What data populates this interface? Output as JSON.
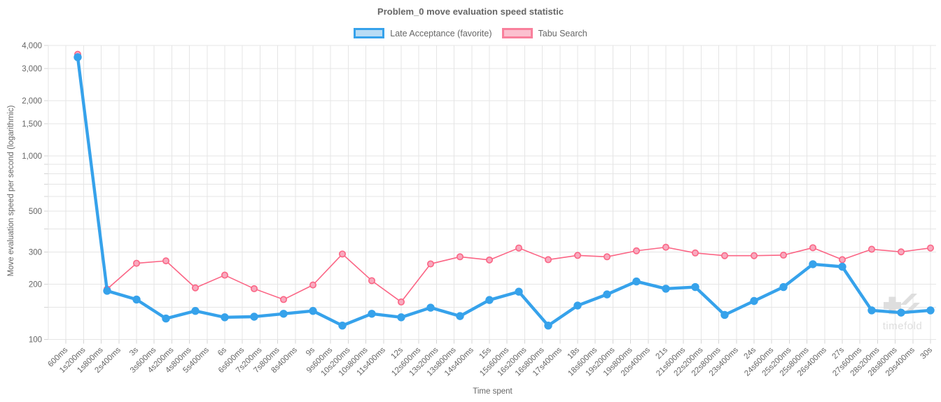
{
  "chart": {
    "title": "Problem_0 move evaluation speed statistic",
    "x_axis_title": "Time spent",
    "y_axis_title": "Move evaluation speed per second (logarithmic)",
    "watermark_text": "timefold"
  },
  "legend": {
    "items": [
      {
        "label": "Late Acceptance (favorite)",
        "line_color": "#36A2EB",
        "fill_color": "#B8DCF5"
      },
      {
        "label": "Tabu Search",
        "line_color": "#F9809C",
        "fill_color": "#FBC0CF"
      }
    ]
  },
  "colors": {
    "late_acceptance_line": "#36A2EB",
    "tabu_line": "#FB6585",
    "tabu_marker_fill": "#F8A9BE",
    "grid": "#e5e5e5",
    "tick_mark": "#d4d4d4",
    "tick_text": "#666666",
    "watermark": "#dedede"
  },
  "chart_data": {
    "type": "line",
    "title": "Problem_0 move evaluation speed statistic",
    "xlabel": "Time spent",
    "ylabel": "Move evaluation speed per second (logarithmic)",
    "x_axis": {
      "scale": "linear-time",
      "tick_interval": "600ms",
      "range_seconds": [
        0,
        30
      ],
      "tick_labels": [
        "600ms",
        "1s200ms",
        "1s800ms",
        "2s400ms",
        "3s",
        "3s600ms",
        "4s200ms",
        "4s800ms",
        "5s400ms",
        "6s",
        "6s600ms",
        "7s200ms",
        "7s800ms",
        "8s400ms",
        "9s",
        "9s600ms",
        "10s200ms",
        "10s800ms",
        "11s400ms",
        "12s",
        "12s600ms",
        "13s200ms",
        "13s800ms",
        "14s400ms",
        "15s",
        "15s600ms",
        "16s200ms",
        "16s800ms",
        "17s400ms",
        "18s",
        "18s600ms",
        "19s200ms",
        "19s800ms",
        "20s400ms",
        "21s",
        "21s600ms",
        "22s200ms",
        "22s800ms",
        "23s400ms",
        "24s",
        "24s600ms",
        "25s200ms",
        "25s800ms",
        "26s400ms",
        "27s",
        "27s600ms",
        "28s200ms",
        "28s800ms",
        "29s400ms",
        "30s"
      ]
    },
    "y_axis": {
      "scale": "logarithmic",
      "range": [
        100,
        4000
      ],
      "labeled_ticks": [
        {
          "value": 4000,
          "label": "4,000"
        },
        {
          "value": 3000,
          "label": "3,000"
        },
        {
          "value": 2000,
          "label": "2,000"
        },
        {
          "value": 1500,
          "label": "1,500"
        },
        {
          "value": 1000,
          "label": "1,000"
        },
        {
          "value": 500,
          "label": "500"
        },
        {
          "value": 300,
          "label": "300"
        },
        {
          "value": 200,
          "label": "200"
        },
        {
          "value": 100,
          "label": "100"
        }
      ],
      "minor_gridlines": [
        900,
        800,
        700,
        600,
        400,
        150
      ]
    },
    "x_seconds": [
      1,
      2,
      3,
      4,
      5,
      6,
      7,
      8,
      9,
      10,
      11,
      12,
      13,
      14,
      15,
      16,
      17,
      18,
      19,
      20,
      21,
      22,
      23,
      24,
      25,
      26,
      27,
      28,
      29,
      30
    ],
    "series": [
      {
        "name": "Tabu Search",
        "color": "#FB6585",
        "marker": "ring-circle",
        "marker_fill": "#F8A9BE",
        "line_width": 1.6,
        "values": [
          3580,
          188,
          260,
          268,
          191,
          224,
          189,
          165,
          198,
          292,
          209,
          160,
          258,
          282,
          271,
          315,
          272,
          287,
          282,
          304,
          318,
          296,
          286,
          286,
          288,
          316,
          272,
          310,
          300,
          315
        ]
      },
      {
        "name": "Late Acceptance (favorite)",
        "color": "#36A2EB",
        "marker": "filled-circle",
        "line_width": 4.4,
        "values": [
          3450,
          184,
          165,
          130,
          143,
          132,
          133,
          138,
          143,
          119,
          138,
          132,
          149,
          134,
          164,
          182,
          119,
          153,
          176,
          207,
          189,
          193,
          136,
          162,
          193,
          257,
          249,
          144,
          140,
          144
        ]
      }
    ],
    "legend_position": "top"
  }
}
